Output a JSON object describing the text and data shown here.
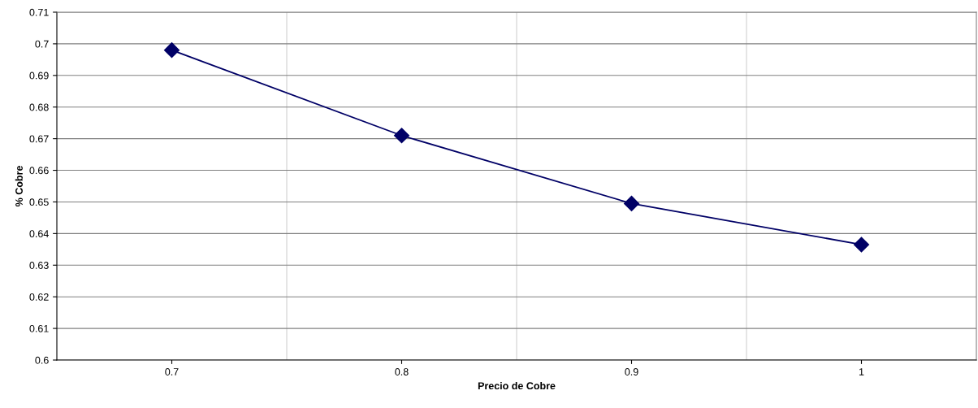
{
  "chart_data": {
    "type": "line",
    "xlabel": "Precio de Cobre",
    "ylabel": "% Cobre",
    "categories": [
      "0.7",
      "0.8",
      "0.9",
      "1"
    ],
    "series": [
      {
        "color": "#000066",
        "values": [
          0.698,
          0.671,
          0.6495,
          0.6365
        ]
      }
    ],
    "ylim": [
      0.6,
      0.71
    ],
    "yticks": [
      0.6,
      0.61,
      0.62,
      0.63,
      0.64,
      0.65,
      0.66,
      0.67,
      0.68,
      0.69,
      0.7,
      0.71
    ],
    "grid": true,
    "marker": "diamond",
    "line_style": "solid"
  }
}
